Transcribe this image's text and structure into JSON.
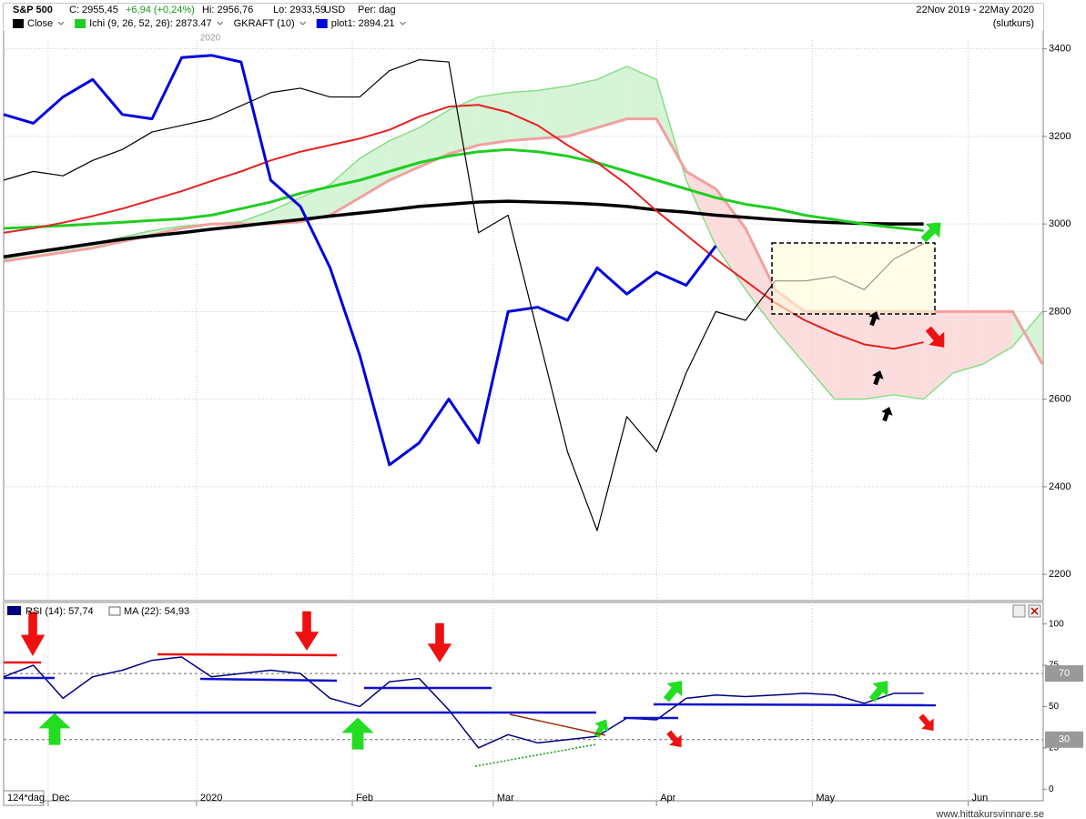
{
  "chart_data": [
    {
      "type": "line",
      "header": {
        "symbol": "S&P 500",
        "close": "C: 2955,45",
        "change": "+6,94 (+0,24%)",
        "high": "Hi: 2956,76",
        "low": "Lo: 2933,59",
        "currency": "USD",
        "period": "Per: dag",
        "range": "22Nov 2019 - 22May 2020",
        "mode": "(slutkurs)"
      },
      "legend": [
        {
          "label": "Close",
          "color": "#000000"
        },
        {
          "label": "Ichi (9, 26, 52, 26): 2873.47",
          "color": "#22cc22"
        },
        {
          "label": "GKRAFT (10)"
        },
        {
          "label": "plot1: 2894.21",
          "color": "#0000dd"
        }
      ],
      "x": [
        0,
        4,
        8,
        12,
        16,
        20,
        24,
        28,
        32,
        36,
        40,
        44,
        48,
        52,
        56,
        60,
        64,
        68,
        72,
        76,
        80,
        84,
        88,
        92,
        96,
        100,
        104,
        108,
        112,
        116,
        120,
        124,
        128,
        132,
        136,
        140
      ],
      "xlim": [
        0,
        140
      ],
      "ylim": [
        2140,
        3420
      ],
      "yticks": [
        2200,
        2400,
        2600,
        2800,
        3000,
        3200,
        3400
      ],
      "grid": true,
      "cloud": {
        "color_up": "#c8f0c8",
        "color_down": "#fbd2d2",
        "color_a": "#88dd88",
        "color_b": "#f2a0a0",
        "span_a": [
          2920,
          2935,
          2945,
          2955,
          2970,
          2985,
          2995,
          3000,
          3005,
          3030,
          3060,
          3090,
          3150,
          3190,
          3220,
          3260,
          3290,
          3300,
          3305,
          3315,
          3330,
          3360,
          3330,
          3100,
          2950,
          2850,
          2760,
          2680,
          2600,
          2600,
          2610,
          2600,
          2660,
          2680,
          2720,
          2800
        ],
        "span_b": [
          2915,
          2925,
          2935,
          2945,
          2960,
          2975,
          2990,
          3000,
          3000,
          3000,
          3005,
          3020,
          3060,
          3100,
          3130,
          3160,
          3180,
          3190,
          3195,
          3200,
          3220,
          3240,
          3240,
          3120,
          3080,
          2990,
          2850,
          2800,
          2800,
          2800,
          2800,
          2800,
          2800,
          2800,
          2800,
          2680
        ]
      },
      "series": [
        {
          "color": "#000000",
          "values": [
            2925,
            2935,
            2945,
            2955,
            2965,
            2973,
            2980,
            2988,
            2995,
            3003,
            3010,
            3018,
            3025,
            3032,
            3040,
            3045,
            3050,
            3052,
            3050,
            3048,
            3045,
            3040,
            3032,
            3027,
            3020,
            3015,
            3010,
            3006,
            3003,
            3001,
            3000,
            3000,
            null,
            null,
            null,
            null
          ]
        },
        {
          "color": "#22cc22",
          "values": [
            2990,
            2993,
            2996,
            3000,
            3004,
            3008,
            3012,
            3020,
            3035,
            3050,
            3070,
            3085,
            3100,
            3120,
            3140,
            3155,
            3165,
            3170,
            3165,
            3155,
            3140,
            3120,
            3100,
            3080,
            3060,
            3045,
            3035,
            3020,
            3010,
            3000,
            2992,
            2985,
            null,
            null,
            null,
            null
          ]
        },
        {
          "color": "#e52222",
          "values": [
            2980,
            2990,
            3003,
            3018,
            3035,
            3055,
            3075,
            3098,
            3120,
            3145,
            3165,
            3180,
            3195,
            3215,
            3245,
            3268,
            3272,
            3255,
            3225,
            3180,
            3140,
            3090,
            3030,
            2975,
            2920,
            2870,
            2820,
            2780,
            2750,
            2725,
            2715,
            2730,
            null,
            null,
            null,
            null
          ]
        },
        {
          "color": "#0000dd",
          "values": [
            3250,
            3230,
            3290,
            3330,
            3250,
            3240,
            3380,
            3385,
            3370,
            3100,
            3040,
            2900,
            2700,
            2450,
            2500,
            2600,
            2500,
            2800,
            2810,
            2780,
            2900,
            2840,
            2890,
            2860,
            2950,
            null,
            null,
            null,
            null,
            null,
            null,
            null,
            null,
            null,
            null,
            null
          ]
        },
        {
          "color": "#000000",
          "values": [
            3100,
            3120,
            3110,
            3145,
            3170,
            3210,
            3225,
            3240,
            3270,
            3300,
            3310,
            3290,
            3290,
            3350,
            3375,
            3370,
            2980,
            3020,
            2750,
            2480,
            2300,
            2560,
            2480,
            2660,
            2800,
            2780,
            2870,
            2870,
            2880,
            2850,
            2920,
            2955,
            null,
            null,
            null,
            null
          ]
        }
      ]
    },
    {
      "type": "line",
      "title": "RSI (14): 57,74",
      "ma_label": "MA (22): 54,93",
      "period_label": "124*dag",
      "watermark": "www.hittakursvinnare.se",
      "x": [
        0,
        4,
        8,
        12,
        16,
        20,
        24,
        28,
        32,
        36,
        40,
        44,
        48,
        52,
        56,
        60,
        64,
        68,
        72,
        76,
        80,
        84,
        88,
        92,
        96,
        100,
        104,
        108,
        112,
        116,
        120,
        124
      ],
      "xlim": [
        0,
        140
      ],
      "xticks": [
        {
          "value": 6,
          "label": "Dec"
        },
        {
          "value": 26,
          "label": "2020"
        },
        {
          "value": 47,
          "label": "Feb"
        },
        {
          "value": 66,
          "label": "Mar"
        },
        {
          "value": 88,
          "label": "Apr"
        },
        {
          "value": 109,
          "label": "May"
        },
        {
          "value": 130,
          "label": "Jun"
        }
      ],
      "ylim": [
        -7,
        113
      ],
      "yticks": [
        0,
        25,
        50,
        75,
        100
      ],
      "levels": [
        70,
        30
      ],
      "series": [
        {
          "color": "#000080",
          "values": [
            68,
            75,
            55,
            68,
            72,
            78,
            80,
            68,
            70,
            72,
            70,
            55,
            50,
            65,
            67,
            48,
            25,
            33,
            28,
            30,
            32,
            43,
            42,
            55,
            57,
            56,
            57,
            58,
            57,
            52,
            58,
            58
          ]
        }
      ]
    }
  ]
}
